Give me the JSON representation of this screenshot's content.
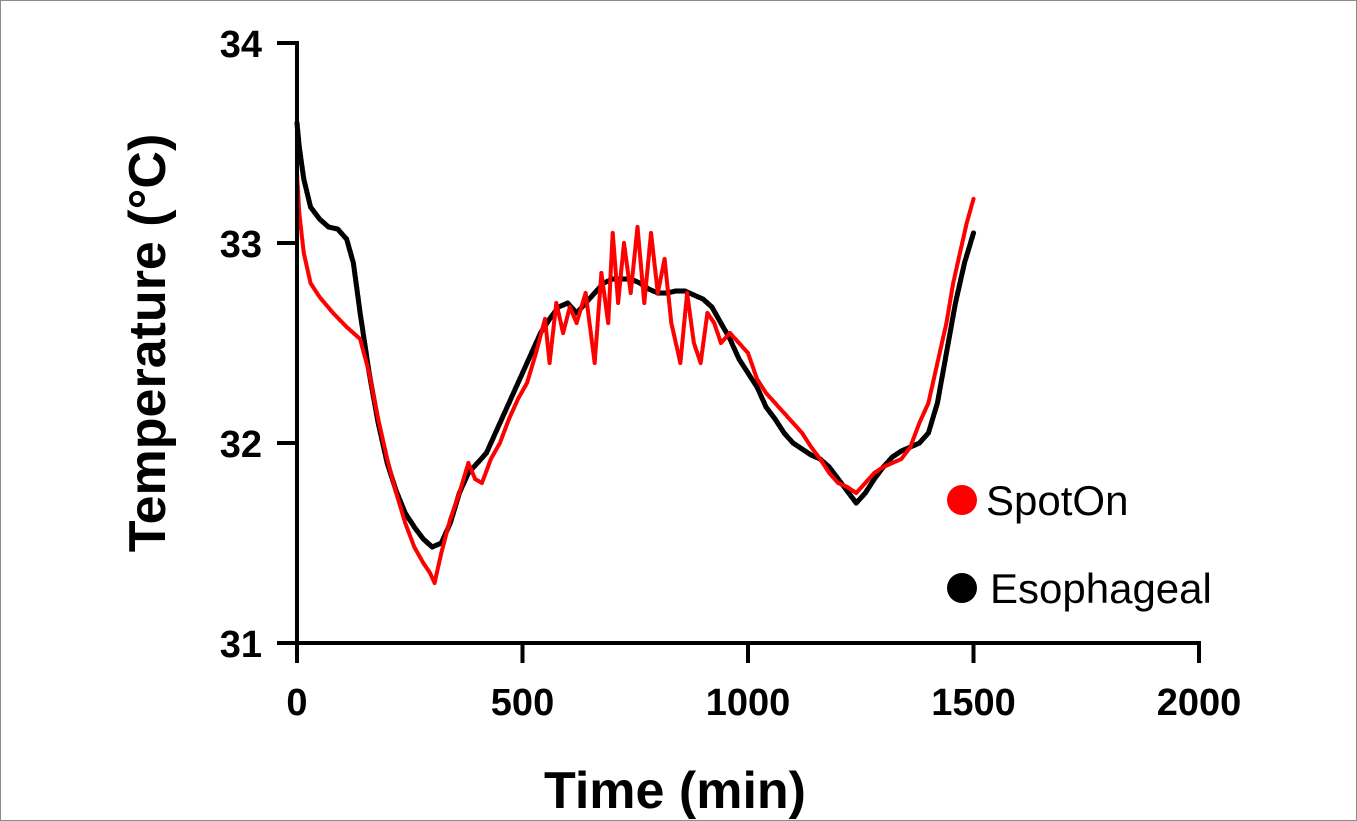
{
  "chart_data": {
    "type": "scatter",
    "xlabel": "Time (min)",
    "ylabel": "Temperature (°C)",
    "xlim": [
      0,
      2000
    ],
    "ylim": [
      31,
      34
    ],
    "x_ticks": [
      0,
      500,
      1000,
      1500,
      2000
    ],
    "y_ticks": [
      31,
      32,
      33,
      34
    ],
    "grid": false,
    "legend_position": "bottom-right",
    "series": [
      {
        "name": "SpotOn",
        "color": "#ff0000",
        "x": [
          0,
          5,
          15,
          30,
          50,
          80,
          110,
          140,
          160,
          180,
          200,
          220,
          240,
          260,
          280,
          295,
          305,
          320,
          340,
          360,
          380,
          395,
          410,
          430,
          450,
          470,
          490,
          510,
          530,
          550,
          560,
          575,
          590,
          605,
          620,
          640,
          660,
          675,
          690,
          700,
          712,
          725,
          740,
          755,
          770,
          785,
          800,
          815,
          830,
          840,
          850,
          865,
          880,
          895,
          910,
          925,
          940,
          960,
          980,
          1000,
          1020,
          1040,
          1060,
          1080,
          1100,
          1120,
          1140,
          1160,
          1180,
          1200,
          1220,
          1240,
          1260,
          1280,
          1300,
          1320,
          1340,
          1360,
          1380,
          1400,
          1420,
          1440,
          1455,
          1470,
          1485,
          1500
        ],
        "y": [
          33.35,
          33.15,
          32.95,
          32.8,
          32.73,
          32.65,
          32.58,
          32.52,
          32.35,
          32.12,
          31.92,
          31.75,
          31.6,
          31.48,
          31.4,
          31.35,
          31.3,
          31.45,
          31.62,
          31.75,
          31.9,
          31.82,
          31.8,
          31.92,
          32.0,
          32.12,
          32.22,
          32.3,
          32.45,
          32.62,
          32.4,
          32.7,
          32.55,
          32.68,
          32.6,
          32.75,
          32.4,
          32.85,
          32.6,
          33.05,
          32.7,
          33.0,
          32.75,
          33.08,
          32.7,
          33.05,
          32.75,
          32.92,
          32.6,
          32.5,
          32.4,
          32.75,
          32.5,
          32.4,
          32.65,
          32.6,
          32.5,
          32.55,
          32.5,
          32.45,
          32.32,
          32.25,
          32.2,
          32.15,
          32.1,
          32.05,
          31.98,
          31.92,
          31.85,
          31.8,
          31.78,
          31.75,
          31.8,
          31.85,
          31.88,
          31.9,
          31.92,
          31.98,
          32.1,
          32.2,
          32.4,
          32.6,
          32.8,
          32.95,
          33.1,
          33.22
        ]
      },
      {
        "name": "Esophageal",
        "color": "#000000",
        "x": [
          0,
          5,
          15,
          30,
          50,
          70,
          90,
          110,
          125,
          140,
          160,
          180,
          200,
          220,
          240,
          260,
          280,
          300,
          320,
          340,
          360,
          380,
          400,
          420,
          440,
          460,
          480,
          500,
          520,
          540,
          560,
          580,
          600,
          620,
          640,
          660,
          680,
          700,
          720,
          740,
          760,
          780,
          800,
          820,
          840,
          860,
          880,
          900,
          920,
          940,
          960,
          980,
          1000,
          1020,
          1040,
          1060,
          1080,
          1100,
          1120,
          1140,
          1160,
          1180,
          1200,
          1220,
          1240,
          1260,
          1280,
          1300,
          1320,
          1340,
          1360,
          1380,
          1400,
          1420,
          1440,
          1460,
          1480,
          1500
        ],
        "y": [
          33.6,
          33.48,
          33.32,
          33.18,
          33.12,
          33.08,
          33.07,
          33.02,
          32.9,
          32.65,
          32.35,
          32.1,
          31.9,
          31.76,
          31.65,
          31.58,
          31.52,
          31.48,
          31.5,
          31.6,
          31.75,
          31.85,
          31.9,
          31.95,
          32.05,
          32.15,
          32.25,
          32.35,
          32.45,
          32.55,
          32.62,
          32.68,
          32.7,
          32.65,
          32.7,
          32.75,
          32.8,
          32.82,
          32.82,
          32.82,
          32.8,
          32.77,
          32.75,
          32.75,
          32.76,
          32.76,
          32.74,
          32.72,
          32.68,
          32.6,
          32.52,
          32.42,
          32.35,
          32.28,
          32.18,
          32.12,
          32.05,
          32.0,
          31.97,
          31.94,
          31.92,
          31.88,
          31.82,
          31.76,
          31.7,
          31.75,
          31.82,
          31.88,
          31.93,
          31.96,
          31.98,
          32.0,
          32.05,
          32.2,
          32.45,
          32.7,
          32.9,
          33.05
        ]
      }
    ]
  }
}
